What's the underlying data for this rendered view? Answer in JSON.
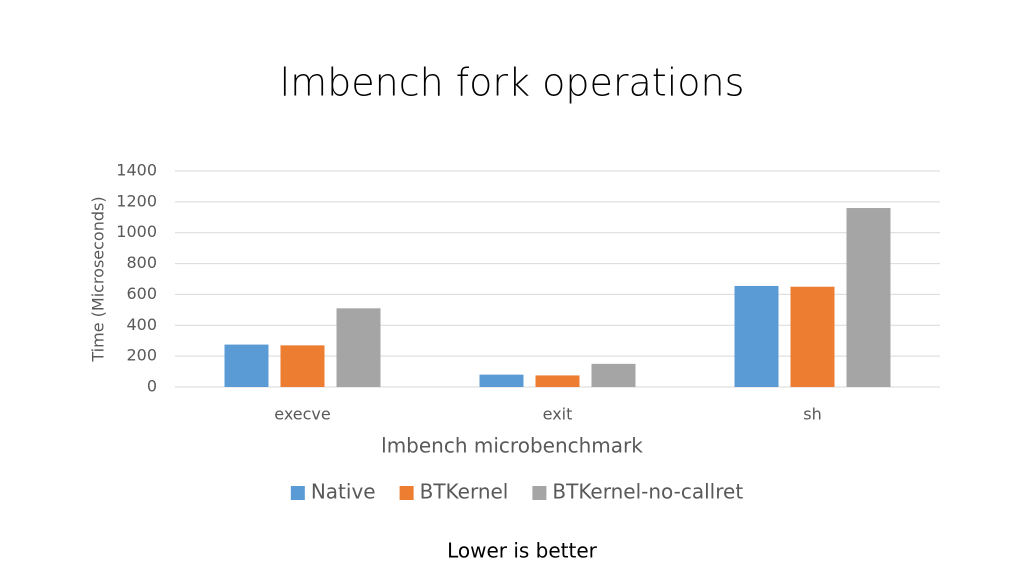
{
  "chart_data": {
    "type": "bar",
    "title": "lmbench fork operations",
    "x_label": "lmbench microbenchmark",
    "y_label": "Time (Microseconds)",
    "categories": [
      "execve",
      "exit",
      "sh"
    ],
    "series": [
      {
        "name": "Native",
        "color": "#5b9bd5",
        "values": [
          275,
          80,
          655
        ]
      },
      {
        "name": "BTKernel",
        "color": "#ed7d31",
        "values": [
          270,
          75,
          650
        ]
      },
      {
        "name": "BTKernel-no-callret",
        "color": "#a5a5a5",
        "values": [
          510,
          150,
          1160
        ]
      }
    ],
    "ylim": [
      0,
      1400
    ],
    "yticks": [
      0,
      200,
      400,
      600,
      800,
      1000,
      1200,
      1400
    ],
    "grid": true,
    "legend": "bottom",
    "annotation": "Lower is better"
  }
}
